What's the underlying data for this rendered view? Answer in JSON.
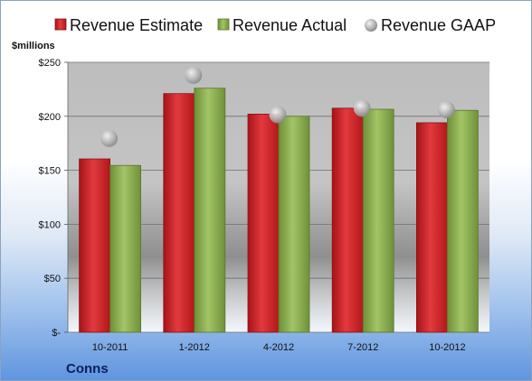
{
  "chart_data": {
    "type": "bar",
    "unit_label": "$millions",
    "company": "Conns",
    "categories": [
      "10-2011",
      "1-2012",
      "4-2012",
      "7-2012",
      "10-2012"
    ],
    "series": [
      {
        "name": "Revenue Estimate",
        "kind": "bar",
        "color": "#d8262b",
        "values": [
          160.5,
          221,
          202,
          207.5,
          194
        ]
      },
      {
        "name": "Revenue Actual",
        "kind": "bar",
        "color": "#8aae4e",
        "values": [
          154.5,
          226,
          200,
          206.5,
          205.5
        ]
      },
      {
        "name": "Revenue GAAP",
        "kind": "marker",
        "color": "#b4b4b4",
        "values": [
          179.5,
          238,
          201.5,
          207.5,
          206
        ]
      }
    ],
    "y_ticks": [
      "$-",
      "$50",
      "$100",
      "$150",
      "$200",
      "$250"
    ],
    "y_tick_values": [
      0,
      50,
      100,
      150,
      200,
      250
    ],
    "ylim": [
      0,
      250
    ],
    "grid": true,
    "legend_position": "top"
  }
}
